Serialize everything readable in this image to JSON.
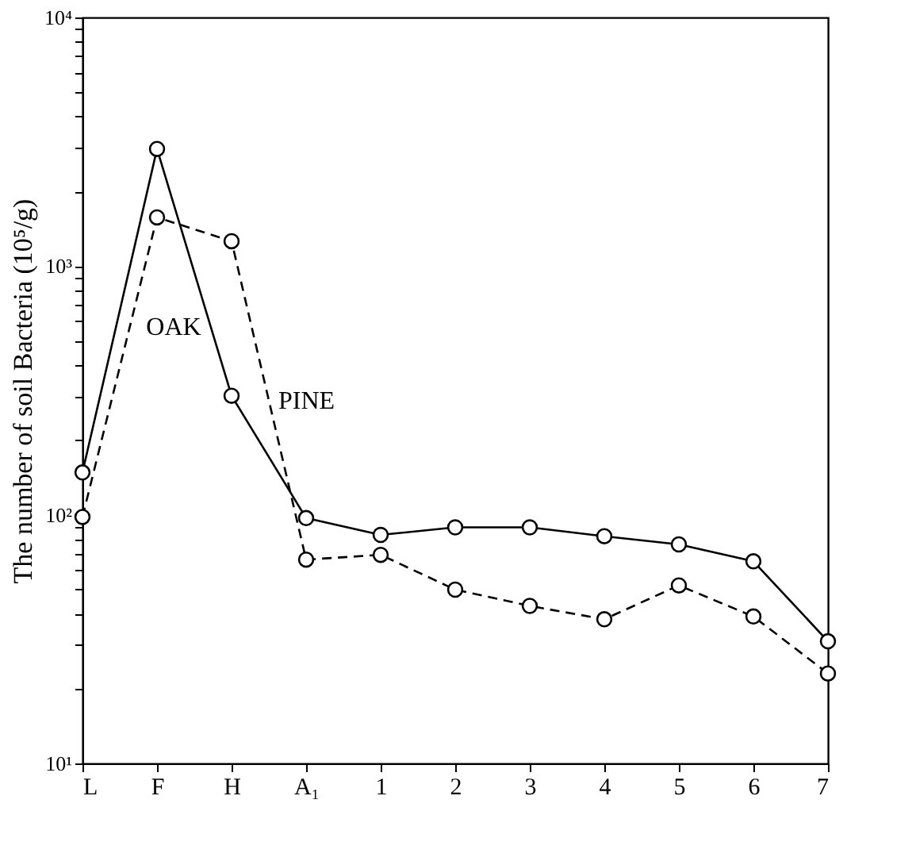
{
  "chart_data": {
    "type": "line",
    "ylabel": "The number of soil Bacteria (10⁵/g)",
    "categories": [
      "L",
      "F",
      "H",
      "A₁",
      "1",
      "2",
      "3",
      "4",
      "5",
      "6",
      "7"
    ],
    "series": [
      {
        "name": "OAK",
        "color": "#000000",
        "line_style": "solid",
        "values": [
          148,
          2960,
          301,
          97,
          83,
          89,
          89,
          82,
          76,
          65,
          31
        ]
      },
      {
        "name": "PINE",
        "color": "#000000",
        "line_style": "dashed",
        "values": [
          98,
          1570,
          1260,
          66,
          69,
          50,
          43,
          38,
          52,
          39,
          23
        ]
      }
    ],
    "log": "y",
    "ylim": [
      10,
      10000
    ],
    "yticks": [
      {
        "value": 10,
        "label": "10¹"
      },
      {
        "value": 20,
        "label": null
      },
      {
        "value": 30,
        "label": null
      },
      {
        "value": 40,
        "label": null
      },
      {
        "value": 50,
        "label": null
      },
      {
        "value": 60,
        "label": null
      },
      {
        "value": 70,
        "label": null
      },
      {
        "value": 80,
        "label": null
      },
      {
        "value": 90,
        "label": null
      },
      {
        "value": 100,
        "label": "10²"
      },
      {
        "value": 200,
        "label": null
      },
      {
        "value": 300,
        "label": null
      },
      {
        "value": 400,
        "label": null
      },
      {
        "value": 500,
        "label": null
      },
      {
        "value": 600,
        "label": null
      },
      {
        "value": 700,
        "label": null
      },
      {
        "value": 800,
        "label": null
      },
      {
        "value": 900,
        "label": null
      },
      {
        "value": 1000,
        "label": "10³"
      },
      {
        "value": 2000,
        "label": null
      },
      {
        "value": 3000,
        "label": null
      },
      {
        "value": 4000,
        "label": null
      },
      {
        "value": 5000,
        "label": null
      },
      {
        "value": 6000,
        "label": null
      },
      {
        "value": 7000,
        "label": null
      },
      {
        "value": 8000,
        "label": null
      },
      {
        "value": 9000,
        "label": null
      },
      {
        "value": 10000,
        "label": "10⁴"
      }
    ],
    "marker": "circle",
    "grid": false,
    "legend": false
  }
}
